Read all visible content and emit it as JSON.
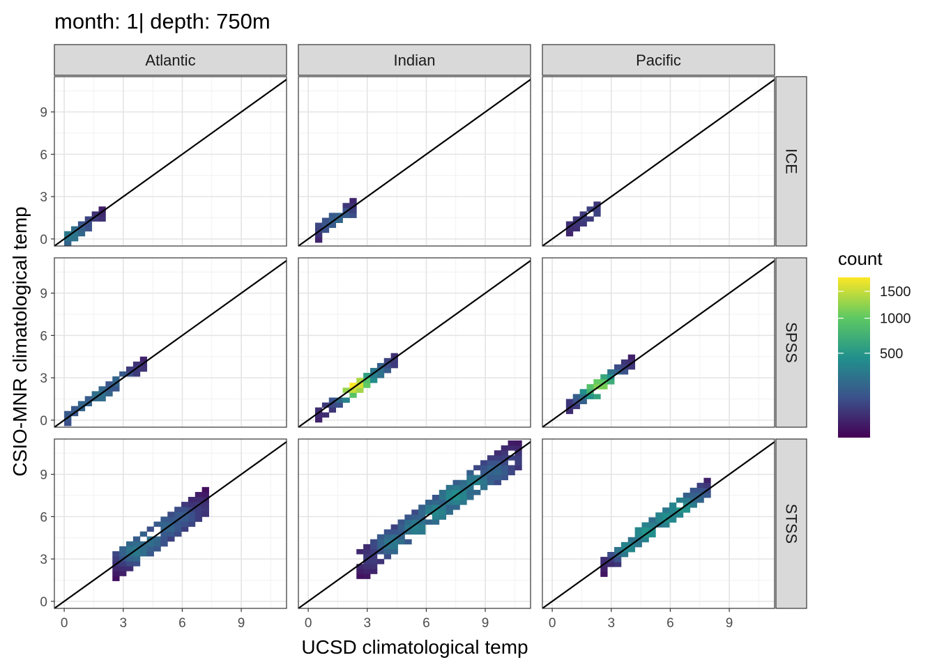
{
  "chart_data": {
    "type": "heatmap",
    "title": "month: 1| depth: 750m",
    "xlabel": "UCSD climatological temp",
    "ylabel": "CSIO-MNR climatological temp",
    "columns": [
      "Atlantic",
      "Indian",
      "Pacific"
    ],
    "rows": [
      "ICE",
      "SPSS",
      "STSS"
    ],
    "xlim": [
      -0.5,
      11.3
    ],
    "ylim": [
      -0.5,
      11.5
    ],
    "x_ticks": [
      0,
      3,
      6,
      9
    ],
    "y_ticks": [
      0,
      3,
      6,
      9
    ],
    "bin_width": 0.35,
    "reference_line": "y = x",
    "grid": true,
    "legend": {
      "title": "count",
      "position": "right",
      "ticks": [
        500,
        1000,
        1500
      ],
      "range": [
        1,
        1800
      ],
      "colormap": "viridis"
    },
    "panels": {
      "ICE": {
        "Atlantic": {
          "points": [
            [
              0.3,
              0.3,
              300
            ],
            [
              0.6,
              0.5,
              200
            ],
            [
              1.0,
              0.9,
              120
            ],
            [
              1.4,
              1.2,
              60
            ],
            [
              1.8,
              1.4,
              30
            ]
          ],
          "xlo": 0.0,
          "xhi": 2.0,
          "yspread": 0.5
        },
        "Indian": {
          "points": [
            [
              0.7,
              0.6,
              40
            ],
            [
              1.2,
              1.0,
              150
            ],
            [
              1.6,
              1.4,
              200
            ],
            [
              2.0,
              1.9,
              60
            ]
          ],
          "xlo": 0.4,
          "xhi": 2.4,
          "yspread": 0.6
        },
        "Pacific": {
          "points": [
            [
              1.1,
              1.0,
              40
            ],
            [
              1.6,
              1.4,
              60
            ],
            [
              2.1,
              1.9,
              80
            ],
            [
              2.3,
              2.2,
              20
            ]
          ],
          "xlo": 0.8,
          "xhi": 2.4,
          "yspread": 0.5
        }
      },
      "SPSS": {
        "Atlantic": {
          "points": [
            [
              0.3,
              0.3,
              150
            ],
            [
              1.0,
              1.0,
              200
            ],
            [
              1.8,
              1.8,
              250
            ],
            [
              2.8,
              2.8,
              200
            ],
            [
              3.6,
              3.5,
              60
            ]
          ],
          "xlo": 0.0,
          "xhi": 3.9,
          "yspread": 0.4
        },
        "Indian": {
          "points": [
            [
              0.8,
              0.7,
              40
            ],
            [
              1.6,
              1.6,
              150
            ],
            [
              2.3,
              2.5,
              1800
            ],
            [
              2.7,
              2.7,
              700
            ],
            [
              3.3,
              3.3,
              300
            ],
            [
              3.9,
              4.0,
              80
            ],
            [
              4.3,
              4.6,
              30
            ]
          ],
          "xlo": 0.4,
          "xhi": 4.5,
          "yspread": 0.5
        },
        "Pacific": {
          "points": [
            [
              1.2,
              1.2,
              60
            ],
            [
              1.9,
              1.9,
              300
            ],
            [
              2.4,
              2.4,
              1200
            ],
            [
              2.9,
              2.8,
              400
            ],
            [
              3.5,
              3.5,
              80
            ]
          ],
          "xlo": 0.8,
          "xhi": 3.9,
          "yspread": 0.6
        }
      },
      "STSS": {
        "Atlantic": {
          "points": [
            [
              3.0,
              3.0,
              60
            ],
            [
              3.6,
              3.6,
              300
            ],
            [
              4.3,
              4.3,
              250
            ],
            [
              5.2,
              5.3,
              200
            ],
            [
              6.0,
              6.0,
              150
            ],
            [
              6.8,
              6.5,
              60
            ]
          ],
          "xlo": 2.5,
          "xhi": 7.3,
          "yspread": 1.0
        },
        "Indian": {
          "points": [
            [
              3.2,
              3.0,
              60
            ],
            [
              4.3,
              4.1,
              300
            ],
            [
              5.5,
              5.2,
              350
            ],
            [
              6.5,
              6.3,
              400
            ],
            [
              7.5,
              7.5,
              450
            ],
            [
              8.5,
              8.4,
              350
            ],
            [
              9.5,
              9.2,
              200
            ],
            [
              10.3,
              10.0,
              80
            ]
          ],
          "xlo": 2.6,
          "xhi": 10.8,
          "yspread": 1.2
        },
        "Pacific": {
          "points": [
            [
              3.0,
              3.0,
              40
            ],
            [
              3.9,
              3.8,
              400
            ],
            [
              4.8,
              4.9,
              500
            ],
            [
              5.8,
              5.9,
              450
            ],
            [
              6.6,
              6.6,
              500
            ],
            [
              7.4,
              7.3,
              200
            ]
          ],
          "xlo": 2.5,
          "xhi": 7.9,
          "yspread": 0.7
        }
      }
    }
  }
}
